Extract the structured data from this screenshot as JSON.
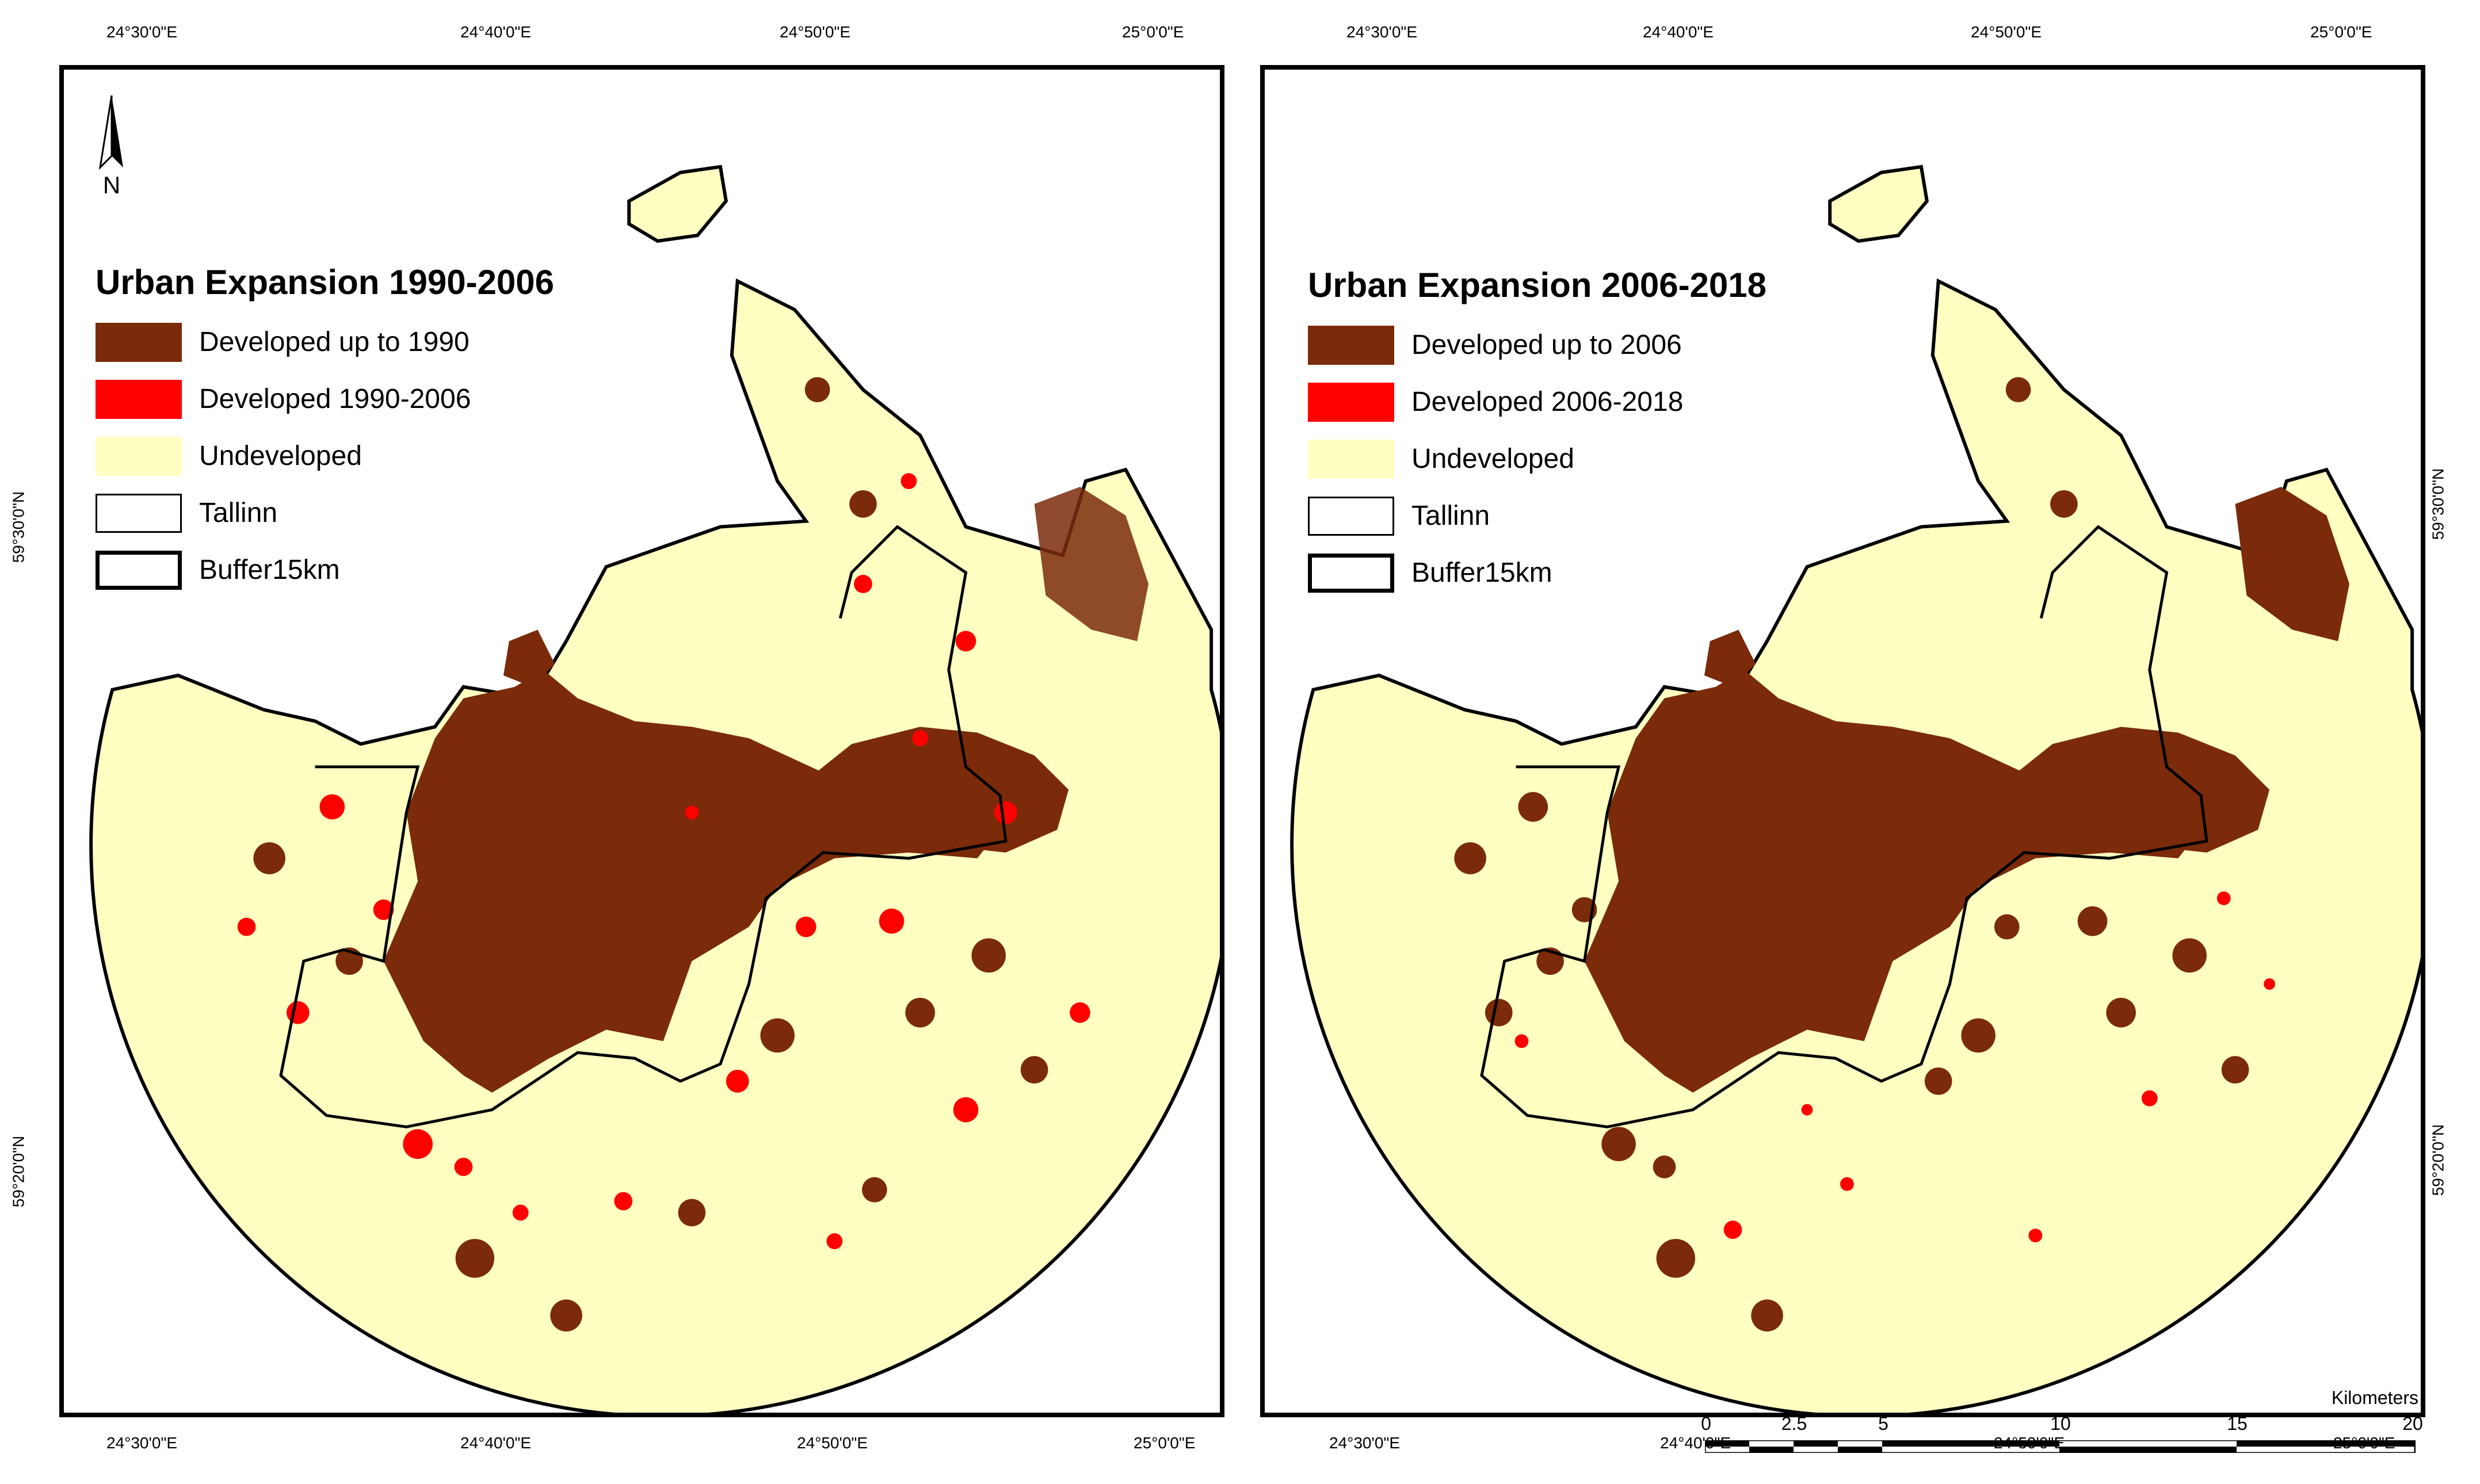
{
  "colors": {
    "developed": "#7b2a0a",
    "new_development": "#ff0000",
    "undeveloped": "#ffffc2",
    "tallinn_boundary": "#000000",
    "buffer_boundary": "#000000"
  },
  "map_left": {
    "legend": {
      "title": "Urban Expansion 1990-2006",
      "items": [
        {
          "label": "Developed up to 1990"
        },
        {
          "label": "Developed 1990-2006"
        },
        {
          "label": "Undeveloped"
        },
        {
          "label": "Tallinn"
        },
        {
          "label": "Buffer15km"
        }
      ]
    },
    "north_arrow_label": "N",
    "top_longitudes": [
      "24°30'0\"E",
      "24°40'0\"E",
      "24°50'0\"E",
      "25°0'0\"E"
    ],
    "bottom_longitudes": [
      "24°30'0\"E",
      "24°40'0\"E",
      "24°50'0\"E",
      "25°0'0\"E"
    ],
    "left_latitudes": [
      "59°30'0\"N",
      "59°20'0\"N"
    ]
  },
  "map_right": {
    "legend": {
      "title": "Urban Expansion 2006-2018",
      "items": [
        {
          "label": "Developed up to 2006"
        },
        {
          "label": "Developed 2006-2018"
        },
        {
          "label": "Undeveloped"
        },
        {
          "label": "Tallinn"
        },
        {
          "label": "Buffer15km"
        }
      ]
    },
    "top_longitudes": [
      "24°30'0\"E",
      "24°40'0\"E",
      "24°50'0\"E",
      "25°0'0\"E"
    ],
    "bottom_longitudes": [
      "24°30'0\"E",
      "24°40'0\"E",
      "24°50'0\"E",
      "25°0'0\"E"
    ],
    "right_latitudes": [
      "59°30'0\"N",
      "59°20'0\"N"
    ],
    "scalebar": {
      "unit": "Kilometers",
      "ticks": [
        "0",
        "2.5",
        "5",
        "10",
        "15",
        "20"
      ]
    }
  }
}
